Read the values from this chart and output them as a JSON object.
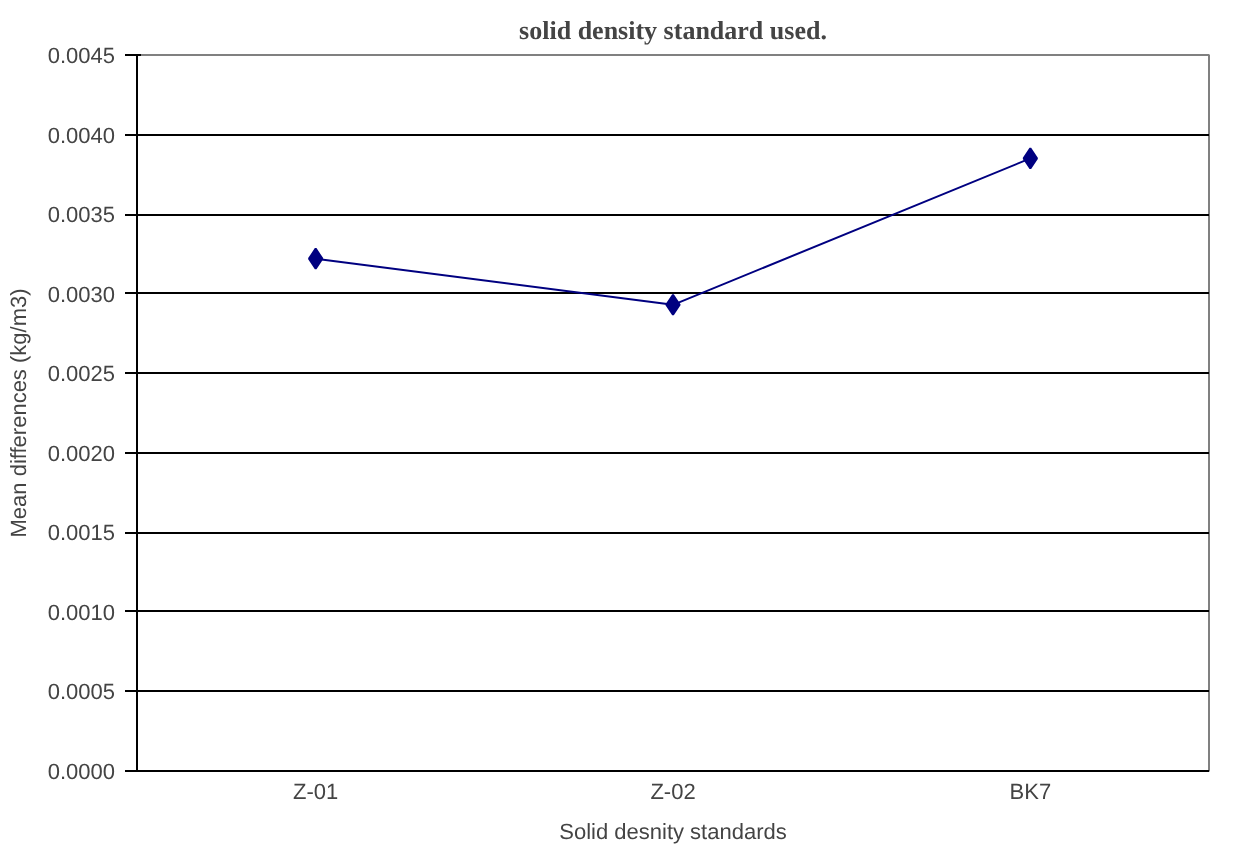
{
  "chart_data": {
    "type": "line",
    "title": "solid density standard used.",
    "xlabel": "Solid desnity standards",
    "ylabel": "Mean differences (kg/m3)",
    "categories": [
      "Z-01",
      "Z-02",
      "BK7"
    ],
    "series": [
      {
        "color": "#000080",
        "values": [
          0.00322,
          0.00293,
          0.00385
        ]
      }
    ],
    "ylim": [
      0,
      0.0045
    ],
    "yticks": [
      {
        "value": 0,
        "label": "0.0000"
      },
      {
        "value": 0.0005,
        "label": "0.0005"
      },
      {
        "value": 0.001,
        "label": "0.0010"
      },
      {
        "value": 0.0015,
        "label": "0.0015"
      },
      {
        "value": 0.002,
        "label": "0.0020"
      },
      {
        "value": 0.0025,
        "label": "0.0025"
      },
      {
        "value": 0.003,
        "label": "0.0030"
      },
      {
        "value": 0.0035,
        "label": "0.0035"
      },
      {
        "value": 0.004,
        "label": "0.0040"
      },
      {
        "value": 0.0045,
        "label": "0.0045"
      }
    ],
    "grid": "y",
    "marker": "diamond",
    "line_style": "solid"
  }
}
